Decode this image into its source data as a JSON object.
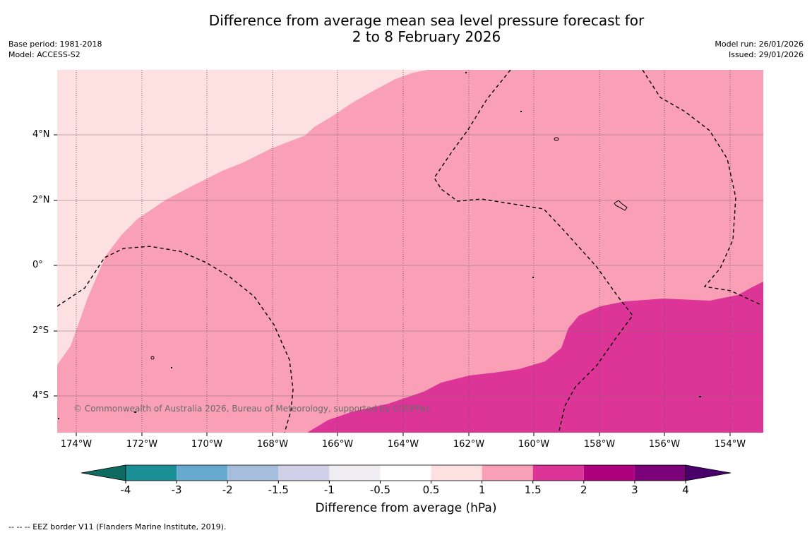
{
  "title_line1": "Difference from average mean sea level pressure forecast for",
  "title_line2": "2 to 8 February 2026",
  "base_period": "Base period: 1981-2018",
  "model": "Model: ACCESS-S2",
  "model_run": "Model run: 26/01/2026",
  "issued": "Issued: 29/01/2026",
  "attribution": "© Commonwealth of Australia 2026, Bureau of Meteorology, supported by COSPPac",
  "lat_labels": [
    "4°N",
    "2°N",
    "0°",
    "2°S",
    "4°S"
  ],
  "lon_labels": [
    "174°W",
    "172°W",
    "170°W",
    "168°W",
    "166°W",
    "164°W",
    "162°W",
    "160°W",
    "158°W",
    "156°W",
    "154°W"
  ],
  "colorbar": {
    "ticks": [
      "-4",
      "-3",
      "-2",
      "-1.5",
      "-1",
      "-0.5",
      "0.5",
      "1",
      "1.5",
      "2",
      "3",
      "4"
    ],
    "colors": [
      "#0d6a5e",
      "#1a8f95",
      "#67a9cf",
      "#a6bddb",
      "#d0d1e6",
      "#f0eef2",
      "#ffffff",
      "#fde0e0",
      "#f99fb6",
      "#dd3497",
      "#ae017e",
      "#7a0177",
      "#49006a"
    ],
    "label": "Difference from average (hPa)"
  },
  "footer": "--  --  -- EEZ border V11 (Flanders Marine Institute, 2019).",
  "map_fill_colors": {
    "light": "#fde0e0",
    "medium": "#f99fb6",
    "dark": "#dd3497"
  }
}
